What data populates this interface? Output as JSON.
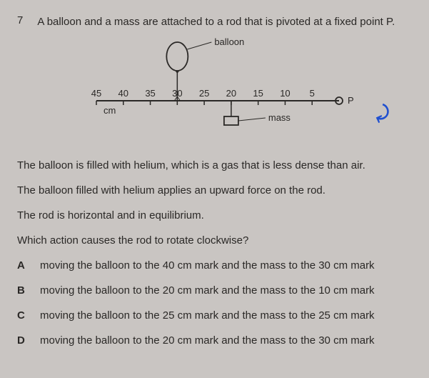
{
  "question_number": "7",
  "stem": "A balloon and a mass are attached to a rod that is pivoted at a fixed point P.",
  "diagram": {
    "balloon_label": "balloon",
    "mass_label": "mass",
    "pivot_label": "P",
    "unit_label": "cm",
    "ruler_marks": [
      "45",
      "40",
      "35",
      "30",
      "25",
      "20",
      "15",
      "10",
      "5"
    ],
    "balloon_position_cm": 30,
    "mass_position_cm": 20,
    "pivot_position_cm": 0,
    "ruler_max_cm": 45,
    "stroke_color": "#2a2826",
    "balloon_fill": "#c9c5c2",
    "text_fontsize": 13
  },
  "paragraphs": [
    "The balloon is filled with helium, which is a gas that is less dense than air.",
    "The balloon filled with helium applies an upward force on the rod.",
    "The rod is horizontal and in equilibrium.",
    "Which action causes the rod to rotate clockwise?"
  ],
  "options": [
    {
      "letter": "A",
      "text": "moving the balloon to the 40 cm mark and the mass to the 30 cm mark"
    },
    {
      "letter": "B",
      "text": "moving the balloon to the 20 cm mark and the mass to the 10 cm mark"
    },
    {
      "letter": "C",
      "text": "moving the balloon to the 25 cm mark and the mass to the 25 cm mark"
    },
    {
      "letter": "D",
      "text": "moving the balloon to the 20 cm mark and the mass to the 30 cm mark"
    }
  ],
  "annotation": "⤸"
}
